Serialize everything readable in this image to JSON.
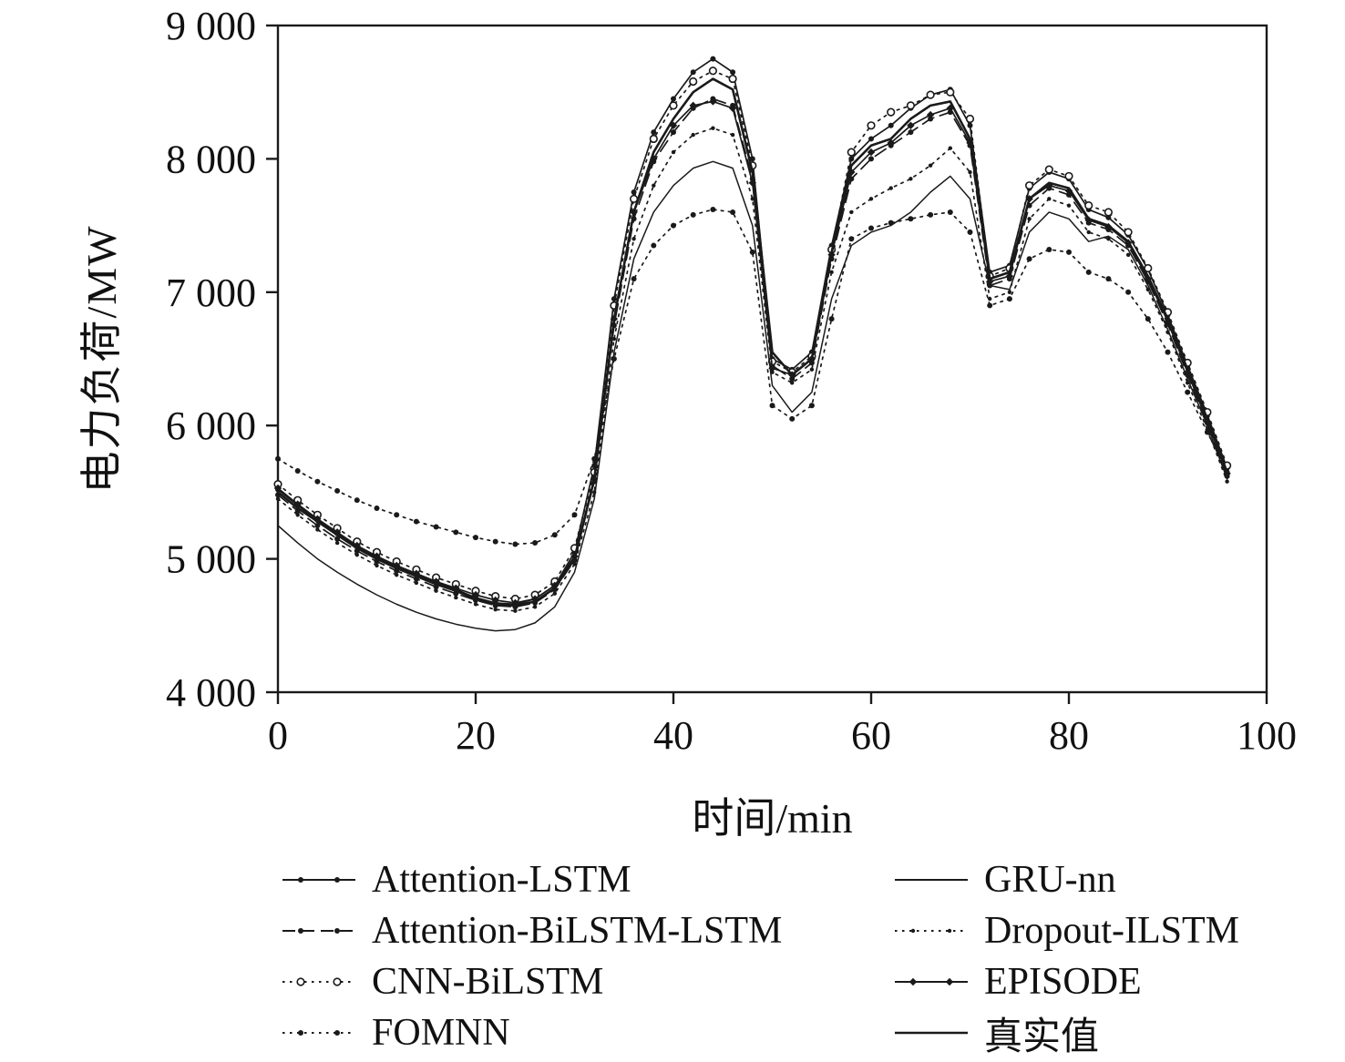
{
  "figure": {
    "background": "#ffffff"
  },
  "chart_data": {
    "type": "line",
    "title": "",
    "xlabel": "时间/min",
    "ylabel": "电力负荷/MW",
    "xlim": [
      0,
      100
    ],
    "ylim": [
      4000,
      9000
    ],
    "grid": false,
    "axis_color": "#1a1a1a",
    "legend_position": "bottom-two-columns",
    "x_ticks": [
      {
        "v": 0,
        "label": "0"
      },
      {
        "v": 20,
        "label": "20"
      },
      {
        "v": 40,
        "label": "40"
      },
      {
        "v": 60,
        "label": "60"
      },
      {
        "v": 80,
        "label": "80"
      },
      {
        "v": 100,
        "label": "100"
      }
    ],
    "y_ticks": [
      {
        "v": 4000,
        "label": "4 000"
      },
      {
        "v": 5000,
        "label": "5 000"
      },
      {
        "v": 6000,
        "label": "6 000"
      },
      {
        "v": 7000,
        "label": "7 000"
      },
      {
        "v": 8000,
        "label": "8 000"
      },
      {
        "v": 9000,
        "label": "9 000"
      }
    ],
    "x": [
      0,
      2,
      4,
      6,
      8,
      10,
      12,
      14,
      16,
      18,
      20,
      22,
      24,
      26,
      28,
      30,
      32,
      34,
      36,
      38,
      40,
      42,
      44,
      46,
      48,
      50,
      52,
      54,
      56,
      58,
      60,
      62,
      64,
      66,
      68,
      70,
      72,
      74,
      76,
      78,
      80,
      82,
      84,
      86,
      88,
      90,
      92,
      94,
      96
    ],
    "series": [
      {
        "name": "Attention-LSTM",
        "line_style": "solid",
        "marker": "dot",
        "color": "#1a1a1a",
        "width": 1.7,
        "values": [
          5520,
          5400,
          5290,
          5190,
          5090,
          5010,
          4940,
          4880,
          4820,
          4770,
          4710,
          4670,
          4660,
          4700,
          4800,
          5050,
          5700,
          6950,
          7750,
          8200,
          8450,
          8650,
          8750,
          8650,
          8000,
          6500,
          6420,
          6550,
          7350,
          8000,
          8150,
          8250,
          8380,
          8480,
          8520,
          8250,
          7150,
          7200,
          7780,
          7900,
          7850,
          7620,
          7560,
          7430,
          7170,
          6830,
          6450,
          6080,
          5680
        ]
      },
      {
        "name": "Attention-BiLSTM-LSTM",
        "line_style": "dashed",
        "marker": "dot",
        "color": "#1a1a1a",
        "width": 1.7,
        "values": [
          5480,
          5360,
          5250,
          5150,
          5060,
          4980,
          4910,
          4850,
          4790,
          4740,
          4690,
          4650,
          4640,
          4670,
          4770,
          4990,
          5580,
          6750,
          7550,
          7980,
          8200,
          8380,
          8450,
          8400,
          7850,
          6450,
          6350,
          6470,
          7250,
          7850,
          8000,
          8100,
          8200,
          8300,
          8350,
          8100,
          7050,
          7100,
          7650,
          7780,
          7730,
          7520,
          7470,
          7350,
          7080,
          6760,
          6380,
          6020,
          5620
        ]
      },
      {
        "name": "CNN-BiLSTM",
        "line_style": "dotted",
        "marker": "circle",
        "color": "#1a1a1a",
        "width": 1.7,
        "values": [
          5560,
          5440,
          5330,
          5230,
          5130,
          5050,
          4980,
          4920,
          4860,
          4810,
          4760,
          4720,
          4700,
          4730,
          4830,
          5080,
          5650,
          6900,
          7700,
          8150,
          8400,
          8580,
          8660,
          8600,
          7950,
          6480,
          6400,
          6520,
          7320,
          8050,
          8250,
          8350,
          8400,
          8480,
          8500,
          8300,
          7120,
          7180,
          7800,
          7920,
          7870,
          7650,
          7600,
          7450,
          7180,
          6850,
          6470,
          6100,
          5700
        ]
      },
      {
        "name": "FOMNN",
        "line_style": "dotted",
        "marker": "dot",
        "color": "#1a1a1a",
        "width": 1.7,
        "values": [
          5750,
          5660,
          5580,
          5510,
          5440,
          5380,
          5330,
          5280,
          5240,
          5200,
          5160,
          5130,
          5110,
          5120,
          5180,
          5330,
          5750,
          6500,
          7100,
          7350,
          7500,
          7580,
          7620,
          7600,
          7300,
          6150,
          6050,
          6150,
          6800,
          7400,
          7480,
          7520,
          7550,
          7580,
          7600,
          7450,
          6900,
          6950,
          7250,
          7320,
          7300,
          7150,
          7100,
          7000,
          6800,
          6550,
          6250,
          5950,
          5650
        ]
      },
      {
        "name": "GRU-nn",
        "line_style": "solid",
        "marker": "none",
        "color": "#1a1a1a",
        "width": 1.5,
        "values": [
          5250,
          5120,
          5000,
          4900,
          4810,
          4730,
          4660,
          4600,
          4550,
          4510,
          4480,
          4460,
          4470,
          4520,
          4640,
          4900,
          5450,
          6550,
          7250,
          7600,
          7800,
          7930,
          7980,
          7930,
          7500,
          6300,
          6100,
          6250,
          6950,
          7350,
          7450,
          7500,
          7600,
          7750,
          7870,
          7700,
          7050,
          7020,
          7450,
          7600,
          7550,
          7380,
          7420,
          7320,
          7050,
          6720,
          6350,
          6000,
          5600
        ]
      },
      {
        "name": "Dropout-ILSTM",
        "line_style": "dotted",
        "marker": "dot-small",
        "color": "#1a1a1a",
        "width": 1.7,
        "values": [
          5450,
          5330,
          5220,
          5120,
          5030,
          4950,
          4880,
          4820,
          4760,
          4710,
          4660,
          4620,
          4610,
          4640,
          4740,
          4960,
          5500,
          6650,
          7400,
          7800,
          8050,
          8180,
          8230,
          8180,
          7700,
          6400,
          6320,
          6420,
          7150,
          7600,
          7700,
          7780,
          7850,
          7950,
          8080,
          7900,
          6950,
          7000,
          7550,
          7700,
          7650,
          7450,
          7400,
          7280,
          7020,
          6700,
          6320,
          5970,
          5580
        ]
      },
      {
        "name": "EPISODE",
        "line_style": "solid",
        "marker": "diamond",
        "color": "#1a1a1a",
        "width": 1.7,
        "values": [
          5530,
          5410,
          5300,
          5200,
          5100,
          5020,
          4950,
          4890,
          4830,
          4780,
          4730,
          4690,
          4670,
          4700,
          4800,
          5020,
          5600,
          6800,
          7600,
          8000,
          8250,
          8400,
          8430,
          8380,
          7820,
          6430,
          6380,
          6500,
          7280,
          7900,
          8050,
          8120,
          8250,
          8330,
          8380,
          8120,
          7080,
          7120,
          7700,
          7800,
          7760,
          7540,
          7490,
          7370,
          7100,
          6780,
          6400,
          6030,
          5640
        ]
      },
      {
        "name": "真实值",
        "line_style": "solid",
        "marker": "none",
        "color": "#1a1a1a",
        "width": 2.6,
        "values": [
          5500,
          5380,
          5280,
          5180,
          5080,
          5000,
          4930,
          4870,
          4810,
          4760,
          4700,
          4660,
          4650,
          4680,
          4780,
          5000,
          5600,
          6800,
          7600,
          8050,
          8300,
          8500,
          8600,
          8520,
          7900,
          6550,
          6380,
          6500,
          7300,
          7950,
          8100,
          8150,
          8300,
          8400,
          8430,
          8150,
          7100,
          7150,
          7700,
          7820,
          7780,
          7550,
          7500,
          7380,
          7120,
          6800,
          6420,
          6050,
          5650
        ]
      }
    ]
  }
}
